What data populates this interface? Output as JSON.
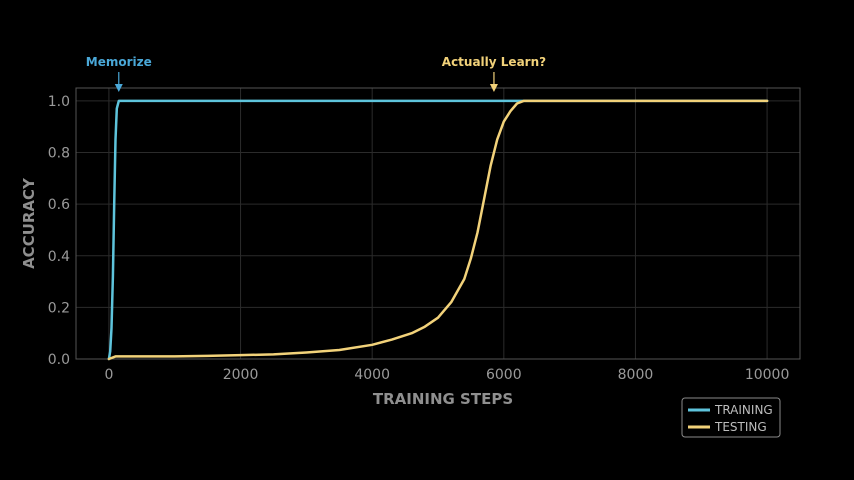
{
  "chart_data": {
    "type": "line",
    "title": "",
    "xlabel": "TRAINING STEPS",
    "ylabel": "ACCURACY",
    "xlim": [
      -500,
      10500
    ],
    "ylim": [
      0,
      1.05
    ],
    "xticks": [
      0,
      2000,
      4000,
      6000,
      8000,
      10000
    ],
    "xtick_labels": [
      "0",
      "2000",
      "4000",
      "6000",
      "8000",
      "10000"
    ],
    "yticks": [
      0,
      0.2,
      0.4,
      0.6,
      0.8,
      1.0
    ],
    "ytick_labels": [
      "0.0",
      "0.2",
      "0.4",
      "0.6",
      "0.8",
      "1.0"
    ],
    "grid": true,
    "legend_position": "bottom-right",
    "series": [
      {
        "name": "TRAINING",
        "color": "#5ec4dc",
        "x": [
          0,
          20,
          40,
          60,
          80,
          100,
          120,
          150,
          200,
          500,
          1000,
          2000,
          4000,
          6000,
          8000,
          10000
        ],
        "y": [
          0.0,
          0.03,
          0.12,
          0.32,
          0.6,
          0.85,
          0.97,
          1.0,
          1.0,
          1.0,
          1.0,
          1.0,
          1.0,
          1.0,
          1.0,
          1.0
        ]
      },
      {
        "name": "TESTING",
        "color": "#f2d27a",
        "x": [
          0,
          100,
          500,
          1000,
          1500,
          2000,
          2500,
          3000,
          3500,
          4000,
          4300,
          4600,
          4800,
          5000,
          5200,
          5400,
          5500,
          5600,
          5700,
          5800,
          5900,
          6000,
          6100,
          6200,
          6300,
          6400,
          7000,
          8000,
          9000,
          10000
        ],
        "y": [
          0.0,
          0.01,
          0.01,
          0.01,
          0.012,
          0.015,
          0.018,
          0.025,
          0.035,
          0.055,
          0.075,
          0.1,
          0.125,
          0.16,
          0.22,
          0.31,
          0.39,
          0.49,
          0.62,
          0.75,
          0.85,
          0.92,
          0.96,
          0.99,
          1.0,
          1.0,
          1.0,
          1.0,
          1.0,
          1.0
        ]
      }
    ],
    "annotations": [
      {
        "text": "Memorize",
        "x": 150,
        "color": "#4aa8d8"
      },
      {
        "text": "Actually Learn?",
        "x": 5850,
        "color": "#f2d27a"
      }
    ]
  }
}
